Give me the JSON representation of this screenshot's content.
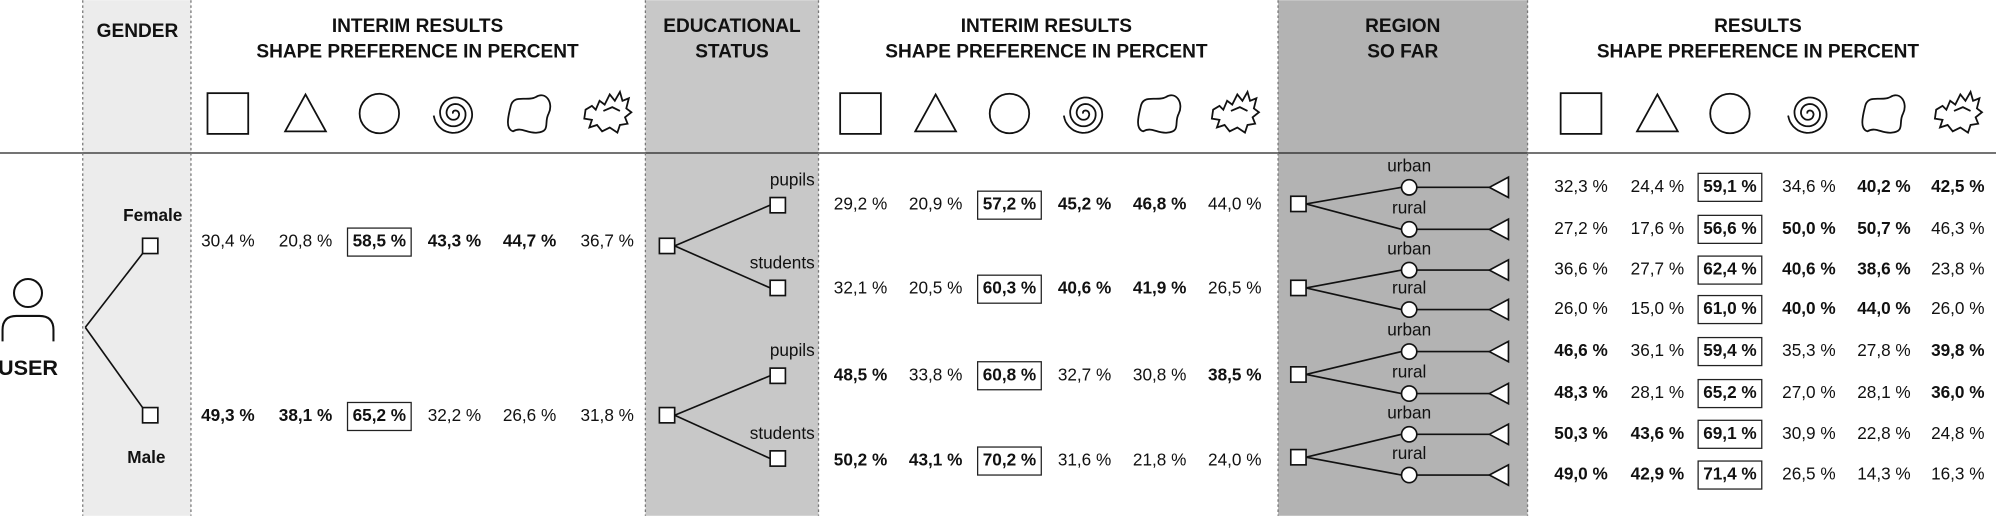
{
  "user_label": "USER",
  "gender": {
    "header": [
      "GENDER"
    ],
    "labels": [
      "Female",
      "Male"
    ]
  },
  "interim1": {
    "header": [
      "INTERIM RESULTS",
      "SHAPE PREFERENCE IN PERCENT"
    ],
    "rows": [
      [
        {
          "text": "30,4 %",
          "bold": false
        },
        {
          "text": "20,8 %",
          "bold": false
        },
        {
          "text": "58,5 %",
          "bold": true
        },
        {
          "text": "43,3 %",
          "bold": true
        },
        {
          "text": "44,7 %",
          "bold": true
        },
        {
          "text": "36,7 %",
          "bold": false
        }
      ],
      [
        {
          "text": "49,3 %",
          "bold": true
        },
        {
          "text": "38,1 %",
          "bold": true
        },
        {
          "text": "65,2 %",
          "bold": true
        },
        {
          "text": "32,2 %",
          "bold": false
        },
        {
          "text": "26,6 %",
          "bold": false
        },
        {
          "text": "31,8 %",
          "bold": false
        }
      ]
    ]
  },
  "education": {
    "header": [
      "EDUCATIONAL",
      "STATUS"
    ],
    "labels": [
      "pupils",
      "students",
      "pupils",
      "students"
    ]
  },
  "interim2": {
    "header": [
      "INTERIM RESULTS",
      "SHAPE PREFERENCE IN PERCENT"
    ],
    "rows": [
      [
        {
          "text": "29,2 %",
          "bold": false
        },
        {
          "text": "20,9 %",
          "bold": false
        },
        {
          "text": "57,2 %",
          "bold": true
        },
        {
          "text": "45,2 %",
          "bold": true
        },
        {
          "text": "46,8 %",
          "bold": true
        },
        {
          "text": "44,0 %",
          "bold": false
        }
      ],
      [
        {
          "text": "32,1 %",
          "bold": false
        },
        {
          "text": "20,5 %",
          "bold": false
        },
        {
          "text": "60,3 %",
          "bold": true
        },
        {
          "text": "40,6 %",
          "bold": true
        },
        {
          "text": "41,9 %",
          "bold": true
        },
        {
          "text": "26,5 %",
          "bold": false
        }
      ],
      [
        {
          "text": "48,5 %",
          "bold": true
        },
        {
          "text": "33,8 %",
          "bold": false
        },
        {
          "text": "60,8 %",
          "bold": true
        },
        {
          "text": "32,7 %",
          "bold": false
        },
        {
          "text": "30,8 %",
          "bold": false
        },
        {
          "text": "38,5 %",
          "bold": true
        }
      ],
      [
        {
          "text": "50,2 %",
          "bold": true
        },
        {
          "text": "43,1 %",
          "bold": true
        },
        {
          "text": "70,2 %",
          "bold": true
        },
        {
          "text": "31,6 %",
          "bold": false
        },
        {
          "text": "21,8 %",
          "bold": false
        },
        {
          "text": "24,0 %",
          "bold": false
        }
      ]
    ]
  },
  "region": {
    "header": [
      "REGION",
      "SO FAR"
    ],
    "labels": [
      "urban",
      "rural",
      "urban",
      "rural",
      "urban",
      "rural",
      "urban",
      "rural"
    ]
  },
  "results": {
    "header": [
      "RESULTS",
      "SHAPE PREFERENCE IN PERCENT"
    ],
    "rows": [
      [
        {
          "text": "32,3 %",
          "bold": false
        },
        {
          "text": "24,4 %",
          "bold": false
        },
        {
          "text": "59,1 %",
          "bold": true
        },
        {
          "text": "34,6 %",
          "bold": false
        },
        {
          "text": "40,2 %",
          "bold": true
        },
        {
          "text": "42,5 %",
          "bold": true
        }
      ],
      [
        {
          "text": "27,2 %",
          "bold": false
        },
        {
          "text": "17,6 %",
          "bold": false
        },
        {
          "text": "56,6 %",
          "bold": true
        },
        {
          "text": "50,0 %",
          "bold": true
        },
        {
          "text": "50,7 %",
          "bold": true
        },
        {
          "text": "46,3 %",
          "bold": false
        }
      ],
      [
        {
          "text": "36,6 %",
          "bold": false
        },
        {
          "text": "27,7 %",
          "bold": false
        },
        {
          "text": "62,4 %",
          "bold": true
        },
        {
          "text": "40,6 %",
          "bold": true
        },
        {
          "text": "38,6 %",
          "bold": true
        },
        {
          "text": "23,8 %",
          "bold": false
        }
      ],
      [
        {
          "text": "26,0 %",
          "bold": false
        },
        {
          "text": "15,0 %",
          "bold": false
        },
        {
          "text": "61,0 %",
          "bold": true
        },
        {
          "text": "40,0 %",
          "bold": true
        },
        {
          "text": "44,0 %",
          "bold": true
        },
        {
          "text": "26,0 %",
          "bold": false
        }
      ],
      [
        {
          "text": "46,6 %",
          "bold": true
        },
        {
          "text": "36,1 %",
          "bold": false
        },
        {
          "text": "59,4 %",
          "bold": true
        },
        {
          "text": "35,3 %",
          "bold": false
        },
        {
          "text": "27,8 %",
          "bold": false
        },
        {
          "text": "39,8 %",
          "bold": true
        }
      ],
      [
        {
          "text": "48,3 %",
          "bold": true
        },
        {
          "text": "28,1 %",
          "bold": false
        },
        {
          "text": "65,2 %",
          "bold": true
        },
        {
          "text": "27,0 %",
          "bold": false
        },
        {
          "text": "28,1 %",
          "bold": false
        },
        {
          "text": "36,0 %",
          "bold": true
        }
      ],
      [
        {
          "text": "50,3 %",
          "bold": true
        },
        {
          "text": "43,6 %",
          "bold": true
        },
        {
          "text": "69,1 %",
          "bold": true
        },
        {
          "text": "30,9 %",
          "bold": false
        },
        {
          "text": "22,8 %",
          "bold": false
        },
        {
          "text": "24,8 %",
          "bold": false
        }
      ],
      [
        {
          "text": "49,0 %",
          "bold": true
        },
        {
          "text": "42,9 %",
          "bold": true
        },
        {
          "text": "71,4 %",
          "bold": true
        },
        {
          "text": "26,5 %",
          "bold": false
        },
        {
          "text": "14,3 %",
          "bold": false
        },
        {
          "text": "16,3 %",
          "bold": false
        }
      ]
    ]
  }
}
